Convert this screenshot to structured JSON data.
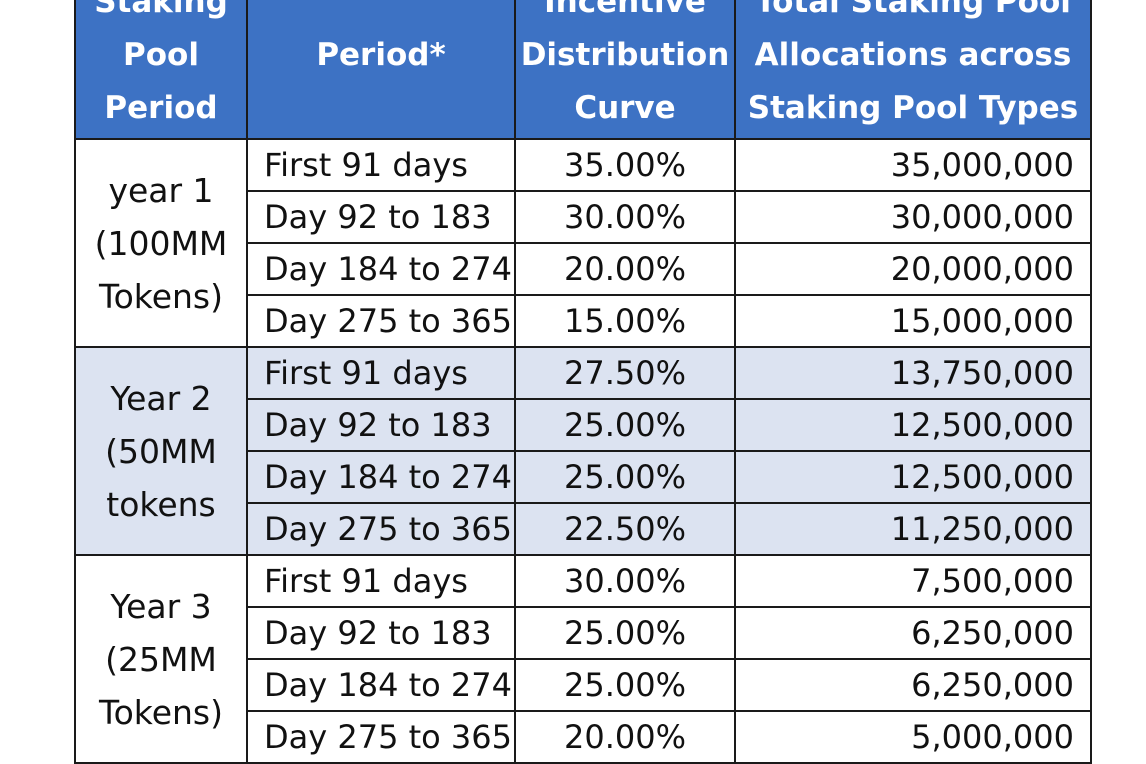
{
  "table": {
    "headers": {
      "pool_period": "Staking Pool Period",
      "period": "Period*",
      "curve": "Incentive Distribution Curve",
      "allocations": "Total Staking Pool Allocations across Staking Pool Types"
    },
    "groups": [
      {
        "label": "year 1 (100MM Tokens)",
        "shaded": false,
        "rows": [
          {
            "period": "First 91 days",
            "curve": "35.00%",
            "allocation": "35,000,000"
          },
          {
            "period": "Day 92 to 183",
            "curve": "30.00%",
            "allocation": "30,000,000"
          },
          {
            "period": "Day 184 to 274",
            "curve": "20.00%",
            "allocation": "20,000,000"
          },
          {
            "period": "Day 275 to 365",
            "curve": "15.00%",
            "allocation": "15,000,000"
          }
        ]
      },
      {
        "label": "Year 2 (50MM tokens",
        "shaded": true,
        "rows": [
          {
            "period": "First 91 days",
            "curve": "27.50%",
            "allocation": "13,750,000"
          },
          {
            "period": "Day 92 to 183",
            "curve": "25.00%",
            "allocation": "12,500,000"
          },
          {
            "period": "Day 184 to 274",
            "curve": "25.00%",
            "allocation": "12,500,000"
          },
          {
            "period": "Day 275 to 365",
            "curve": "22.50%",
            "allocation": "11,250,000"
          }
        ]
      },
      {
        "label": "Year 3 (25MM Tokens)",
        "shaded": false,
        "rows": [
          {
            "period": "First 91 days",
            "curve": "30.00%",
            "allocation": "7,500,000"
          },
          {
            "period": "Day 92 to 183",
            "curve": "25.00%",
            "allocation": "6,250,000"
          },
          {
            "period": "Day 184 to 274",
            "curve": "25.00%",
            "allocation": "6,250,000"
          },
          {
            "period": "Day 275 to 365",
            "curve": "20.00%",
            "allocation": "5,000,000"
          }
        ]
      }
    ]
  },
  "colors": {
    "header_background": "#3d72c4",
    "header_text": "#ffffff",
    "shaded_row": "#dce3f1",
    "border": "#1a1a1a"
  }
}
